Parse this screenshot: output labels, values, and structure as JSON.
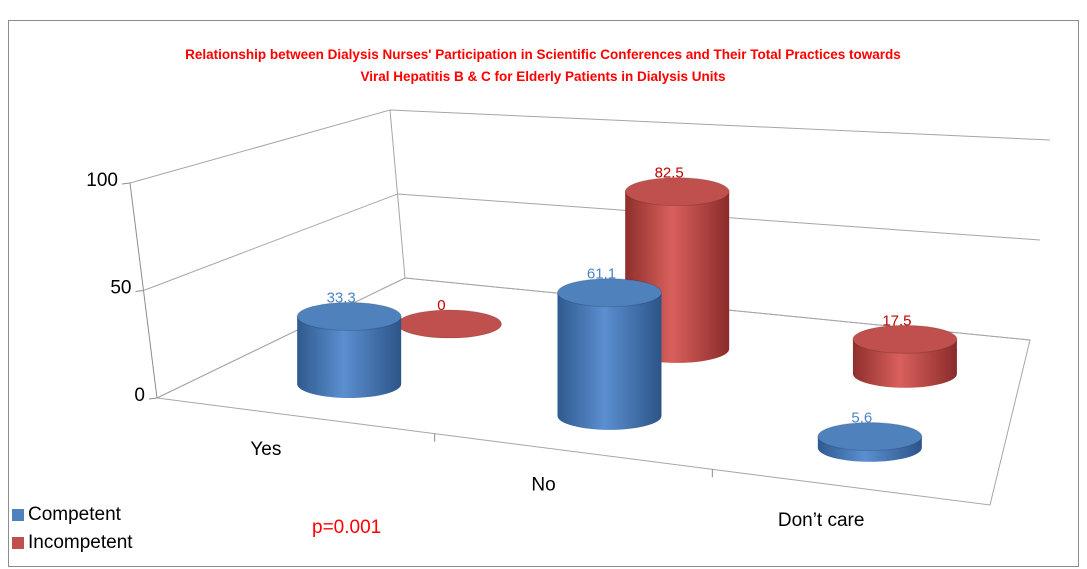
{
  "chart_data": {
    "type": "bar3d",
    "title": "Relationship between Dialysis Nurses' Participation in Scientific Conferences and Their Total Practices towards Viral Hepatitis B & C for Elderly Patients in Dialysis Units",
    "categories": [
      "Yes",
      "No",
      "Don’t care"
    ],
    "series": [
      {
        "name": "Competent",
        "color": "#4f81bd",
        "label_color": "#4a86c8",
        "values": [
          33.3,
          61.1,
          5.6
        ]
      },
      {
        "name": "Incompetent",
        "color": "#c0504d",
        "label_color": "#c00000",
        "values": [
          0,
          82.5,
          17.5
        ]
      }
    ],
    "ylim": [
      0,
      100
    ],
    "yticks": [
      0,
      50,
      100
    ],
    "grid": true,
    "legend": "bottom-left",
    "annotation": "p=0.001"
  }
}
